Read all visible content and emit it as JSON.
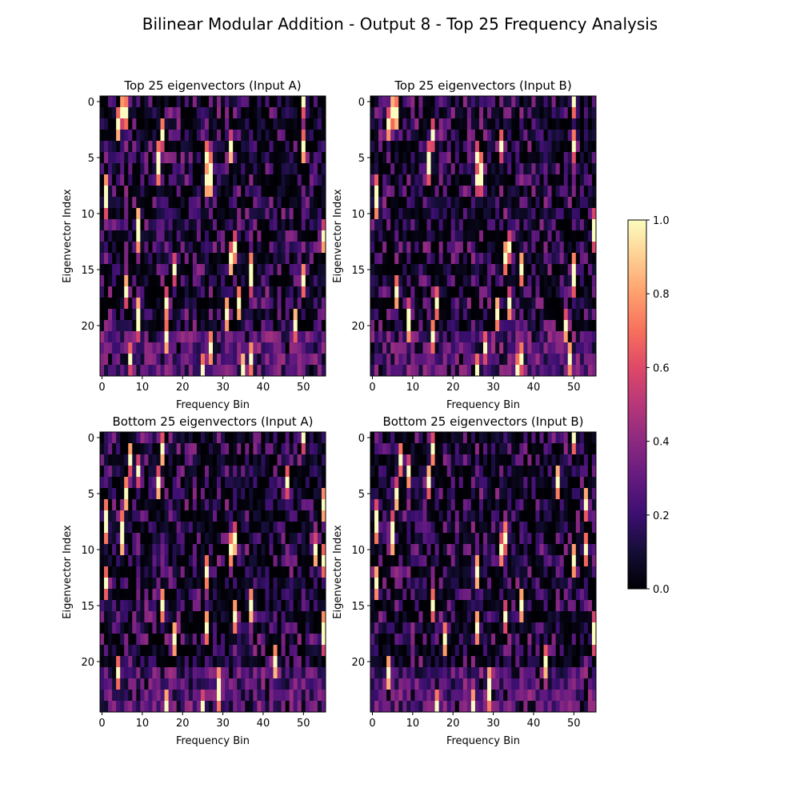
{
  "figure": {
    "suptitle": "Bilinear Modular Addition - Output 8 - Top 25 Frequency Analysis"
  },
  "chart_data": [
    {
      "type": "heatmap",
      "title": "Top 25 eigenvectors (Input A)",
      "xlabel": "Frequency Bin",
      "ylabel": "Eigenvector Index",
      "x_range": [
        0,
        56
      ],
      "y_range": [
        0,
        24
      ],
      "x_ticks": [
        0,
        10,
        20,
        30,
        40,
        50
      ],
      "y_ticks": [
        0,
        5,
        10,
        15,
        20
      ],
      "colormap": "magma",
      "clim": [
        0,
        1
      ],
      "highlights": [
        [
          0,
          50
        ],
        [
          1,
          5
        ],
        [
          1,
          6
        ],
        [
          2,
          4
        ],
        [
          3,
          15
        ],
        [
          4,
          32
        ],
        [
          4,
          50
        ],
        [
          5,
          14
        ],
        [
          5,
          26
        ],
        [
          6,
          14
        ],
        [
          6,
          27
        ],
        [
          7,
          26
        ],
        [
          7,
          27
        ],
        [
          8,
          1
        ],
        [
          9,
          1
        ],
        [
          11,
          9
        ],
        [
          12,
          9
        ],
        [
          12,
          55
        ],
        [
          13,
          33
        ],
        [
          14,
          32
        ],
        [
          15,
          37
        ],
        [
          15,
          18
        ],
        [
          16,
          37
        ],
        [
          16,
          50
        ],
        [
          17,
          6
        ],
        [
          18,
          16
        ],
        [
          18,
          34
        ],
        [
          19,
          9
        ],
        [
          19,
          31
        ],
        [
          20,
          9
        ],
        [
          20,
          48
        ],
        [
          21,
          16
        ],
        [
          22,
          27
        ],
        [
          23,
          7
        ],
        [
          23,
          37
        ],
        [
          24,
          25
        ],
        [
          24,
          35
        ]
      ]
    },
    {
      "type": "heatmap",
      "title": "Top 25 eigenvectors (Input B)",
      "xlabel": "Frequency Bin",
      "ylabel": "Eigenvector Index",
      "x_range": [
        0,
        56
      ],
      "y_range": [
        0,
        24
      ],
      "x_ticks": [
        0,
        10,
        20,
        30,
        40,
        50
      ],
      "y_ticks": [
        0,
        5,
        10,
        15,
        20
      ],
      "colormap": "magma",
      "clim": [
        0,
        1
      ],
      "highlights": [
        [
          0,
          50
        ],
        [
          1,
          5
        ],
        [
          1,
          6
        ],
        [
          2,
          4
        ],
        [
          3,
          15
        ],
        [
          4,
          32
        ],
        [
          4,
          50
        ],
        [
          5,
          14
        ],
        [
          5,
          26
        ],
        [
          6,
          14
        ],
        [
          6,
          27
        ],
        [
          7,
          26
        ],
        [
          7,
          27
        ],
        [
          8,
          1
        ],
        [
          9,
          1
        ],
        [
          11,
          55
        ],
        [
          12,
          55
        ],
        [
          13,
          34
        ],
        [
          14,
          33
        ],
        [
          15,
          37
        ],
        [
          15,
          50
        ],
        [
          16,
          50
        ],
        [
          17,
          6
        ],
        [
          18,
          16
        ],
        [
          18,
          34
        ],
        [
          19,
          9
        ],
        [
          19,
          31
        ],
        [
          20,
          9
        ],
        [
          20,
          48
        ],
        [
          21,
          15
        ],
        [
          22,
          28
        ],
        [
          23,
          49
        ],
        [
          23,
          37
        ],
        [
          24,
          26
        ],
        [
          24,
          36
        ]
      ]
    },
    {
      "type": "heatmap",
      "title": "Bottom 25 eigenvectors (Input A)",
      "xlabel": "Frequency Bin",
      "ylabel": "Eigenvector Index",
      "x_range": [
        0,
        56
      ],
      "y_range": [
        0,
        24
      ],
      "x_ticks": [
        0,
        10,
        20,
        30,
        40,
        50
      ],
      "y_ticks": [
        0,
        5,
        10,
        15,
        20
      ],
      "colormap": "magma",
      "clim": [
        0,
        1
      ],
      "highlights": [
        [
          0,
          50
        ],
        [
          1,
          15
        ],
        [
          2,
          7
        ],
        [
          3,
          9
        ],
        [
          4,
          14
        ],
        [
          4,
          46
        ],
        [
          5,
          6
        ],
        [
          6,
          55
        ],
        [
          7,
          1
        ],
        [
          8,
          1
        ],
        [
          8,
          5
        ],
        [
          9,
          5
        ],
        [
          9,
          33
        ],
        [
          10,
          32
        ],
        [
          10,
          53
        ],
        [
          11,
          55
        ],
        [
          12,
          26
        ],
        [
          13,
          1
        ],
        [
          15,
          15
        ],
        [
          15,
          37
        ],
        [
          16,
          33
        ],
        [
          17,
          26
        ],
        [
          17,
          55
        ],
        [
          18,
          18
        ],
        [
          18,
          55
        ],
        [
          20,
          43
        ],
        [
          21,
          4
        ],
        [
          22,
          29
        ],
        [
          23,
          29
        ],
        [
          24,
          16
        ],
        [
          24,
          25
        ]
      ]
    },
    {
      "type": "heatmap",
      "title": "Bottom 25 eigenvectors (Input B)",
      "xlabel": "Frequency Bin",
      "ylabel": "Eigenvector Index",
      "x_range": [
        0,
        56
      ],
      "y_range": [
        0,
        24
      ],
      "x_ticks": [
        0,
        10,
        20,
        30,
        40,
        50
      ],
      "y_ticks": [
        0,
        5,
        10,
        15,
        20
      ],
      "colormap": "magma",
      "clim": [
        0,
        1
      ],
      "highlights": [
        [
          0,
          50
        ],
        [
          1,
          15
        ],
        [
          2,
          7
        ],
        [
          3,
          9
        ],
        [
          4,
          14
        ],
        [
          4,
          46
        ],
        [
          5,
          6
        ],
        [
          6,
          53
        ],
        [
          7,
          1
        ],
        [
          8,
          1
        ],
        [
          8,
          5
        ],
        [
          9,
          5
        ],
        [
          9,
          33
        ],
        [
          10,
          32
        ],
        [
          10,
          53
        ],
        [
          11,
          50
        ],
        [
          12,
          26
        ],
        [
          13,
          1
        ],
        [
          15,
          15
        ],
        [
          15,
          37
        ],
        [
          16,
          33
        ],
        [
          17,
          26
        ],
        [
          17,
          55
        ],
        [
          18,
          18
        ],
        [
          18,
          55
        ],
        [
          20,
          43
        ],
        [
          21,
          4
        ],
        [
          22,
          29
        ],
        [
          23,
          29
        ],
        [
          24,
          16
        ],
        [
          24,
          25
        ]
      ]
    }
  ],
  "colorbar": {
    "ticks": [
      "0.0",
      "0.2",
      "0.4",
      "0.6",
      "0.8",
      "1.0"
    ],
    "range": [
      0,
      1
    ],
    "colormap": "magma"
  }
}
